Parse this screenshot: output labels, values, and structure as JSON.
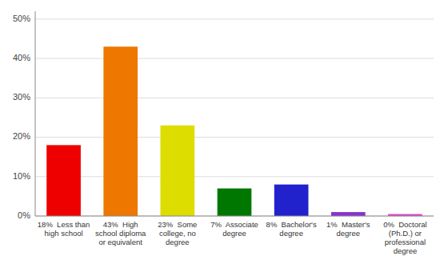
{
  "chart_data": {
    "type": "bar",
    "categories": [
      "18%  Less than\nhigh school",
      "43%  High\nschool diploma\nor equivalent",
      "23%  Some\ncollege, no\ndegree",
      "7%  Associate\ndegree",
      "8%  Bachelor's\ndegree",
      "1%  Master's\ndegree",
      "0%  Doctoral\n(Ph.D.) or\nprofessional\ndegree"
    ],
    "values": [
      18,
      43,
      23,
      7,
      8,
      1,
      0.5
    ],
    "colors": [
      "#ee0000",
      "#ee7700",
      "#dddd00",
      "#007700",
      "#2222cc",
      "#8833cc",
      "#dd44cc"
    ],
    "ylim": [
      0,
      52
    ],
    "yticks": [
      {
        "value": 0,
        "label": "0%"
      },
      {
        "value": 10,
        "label": "10%"
      },
      {
        "value": 20,
        "label": "20%"
      },
      {
        "value": 30,
        "label": "30%"
      },
      {
        "value": 40,
        "label": "40%"
      },
      {
        "value": 50,
        "label": "50%"
      }
    ],
    "grid": true
  }
}
